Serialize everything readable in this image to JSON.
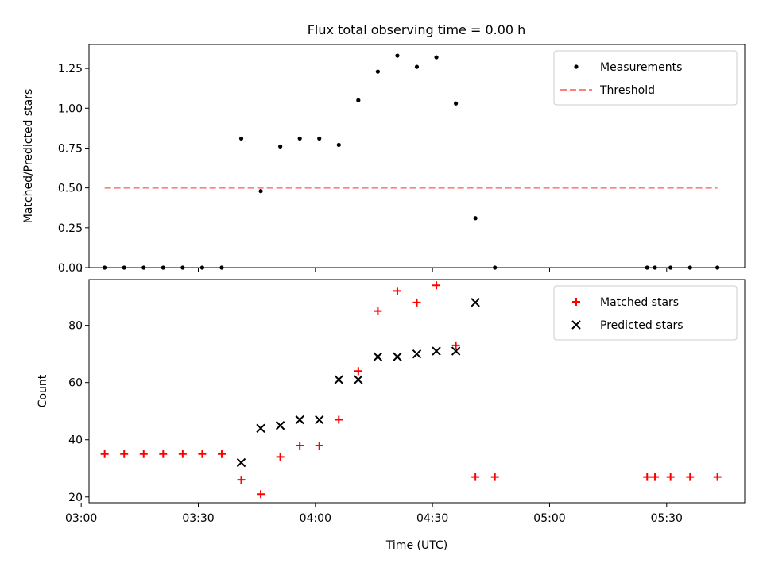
{
  "chart_data": [
    {
      "type": "scatter",
      "title": "Flux total observing time = 0.00 h",
      "xlabel": "",
      "ylabel": "Matched/Predicted stars",
      "xlim": [
        "03:02",
        "05:50"
      ],
      "ylim": [
        0,
        1.4
      ],
      "yticks": [
        "0.00",
        "0.25",
        "0.50",
        "0.75",
        "1.00",
        "1.25"
      ],
      "grid": false,
      "legend_position": "top-right",
      "series": [
        {
          "name": "Measurements",
          "marker": "dot",
          "color": "#000000",
          "points": [
            {
              "x": "03:06",
              "y": 0.0
            },
            {
              "x": "03:11",
              "y": 0.0
            },
            {
              "x": "03:16",
              "y": 0.0
            },
            {
              "x": "03:21",
              "y": 0.0
            },
            {
              "x": "03:26",
              "y": 0.0
            },
            {
              "x": "03:31",
              "y": 0.0
            },
            {
              "x": "03:36",
              "y": 0.0
            },
            {
              "x": "03:41",
              "y": 0.81
            },
            {
              "x": "03:46",
              "y": 0.48
            },
            {
              "x": "03:51",
              "y": 0.76
            },
            {
              "x": "03:56",
              "y": 0.81
            },
            {
              "x": "04:01",
              "y": 0.81
            },
            {
              "x": "04:06",
              "y": 0.77
            },
            {
              "x": "04:11",
              "y": 1.05
            },
            {
              "x": "04:16",
              "y": 1.23
            },
            {
              "x": "04:21",
              "y": 1.33
            },
            {
              "x": "04:26",
              "y": 1.26
            },
            {
              "x": "04:31",
              "y": 1.32
            },
            {
              "x": "04:36",
              "y": 1.03
            },
            {
              "x": "04:41",
              "y": 0.31
            },
            {
              "x": "04:46",
              "y": 0.0
            },
            {
              "x": "05:25",
              "y": 0.0
            },
            {
              "x": "05:27",
              "y": 0.0
            },
            {
              "x": "05:31",
              "y": 0.0
            },
            {
              "x": "05:36",
              "y": 0.0
            },
            {
              "x": "05:43",
              "y": 0.0
            }
          ]
        },
        {
          "name": "Threshold",
          "style": "dashed",
          "color": "#ff7f7f",
          "x": [
            "03:06",
            "05:43"
          ],
          "y": [
            0.5,
            0.5
          ]
        }
      ]
    },
    {
      "type": "scatter",
      "title": "",
      "xlabel": "Time (UTC)",
      "ylabel": "Count",
      "xlim": [
        "03:02",
        "05:50"
      ],
      "ylim": [
        18,
        96
      ],
      "yticks": [
        "20",
        "40",
        "60",
        "80"
      ],
      "xticks": [
        "03:00",
        "03:30",
        "04:00",
        "04:30",
        "05:00",
        "05:30"
      ],
      "grid": false,
      "legend_position": "top-right",
      "series": [
        {
          "name": "Matched stars",
          "marker": "plus",
          "color": "#ff0000",
          "points": [
            {
              "x": "03:06",
              "y": 35
            },
            {
              "x": "03:11",
              "y": 35
            },
            {
              "x": "03:16",
              "y": 35
            },
            {
              "x": "03:21",
              "y": 35
            },
            {
              "x": "03:26",
              "y": 35
            },
            {
              "x": "03:31",
              "y": 35
            },
            {
              "x": "03:36",
              "y": 35
            },
            {
              "x": "03:41",
              "y": 26
            },
            {
              "x": "03:46",
              "y": 21
            },
            {
              "x": "03:51",
              "y": 34
            },
            {
              "x": "03:56",
              "y": 38
            },
            {
              "x": "04:01",
              "y": 38
            },
            {
              "x": "04:06",
              "y": 47
            },
            {
              "x": "04:11",
              "y": 64
            },
            {
              "x": "04:16",
              "y": 85
            },
            {
              "x": "04:21",
              "y": 92
            },
            {
              "x": "04:26",
              "y": 88
            },
            {
              "x": "04:31",
              "y": 94
            },
            {
              "x": "04:36",
              "y": 73
            },
            {
              "x": "04:41",
              "y": 27
            },
            {
              "x": "04:46",
              "y": 27
            },
            {
              "x": "05:25",
              "y": 27
            },
            {
              "x": "05:27",
              "y": 27
            },
            {
              "x": "05:31",
              "y": 27
            },
            {
              "x": "05:36",
              "y": 27
            },
            {
              "x": "05:43",
              "y": 27
            }
          ]
        },
        {
          "name": "Predicted stars",
          "marker": "x",
          "color": "#000000",
          "points": [
            {
              "x": "03:41",
              "y": 32
            },
            {
              "x": "03:46",
              "y": 44
            },
            {
              "x": "03:51",
              "y": 45
            },
            {
              "x": "03:56",
              "y": 47
            },
            {
              "x": "04:01",
              "y": 47
            },
            {
              "x": "04:06",
              "y": 61
            },
            {
              "x": "04:11",
              "y": 61
            },
            {
              "x": "04:16",
              "y": 69
            },
            {
              "x": "04:21",
              "y": 69
            },
            {
              "x": "04:26",
              "y": 70
            },
            {
              "x": "04:31",
              "y": 71
            },
            {
              "x": "04:36",
              "y": 71
            },
            {
              "x": "04:41",
              "y": 88
            }
          ]
        }
      ]
    }
  ]
}
